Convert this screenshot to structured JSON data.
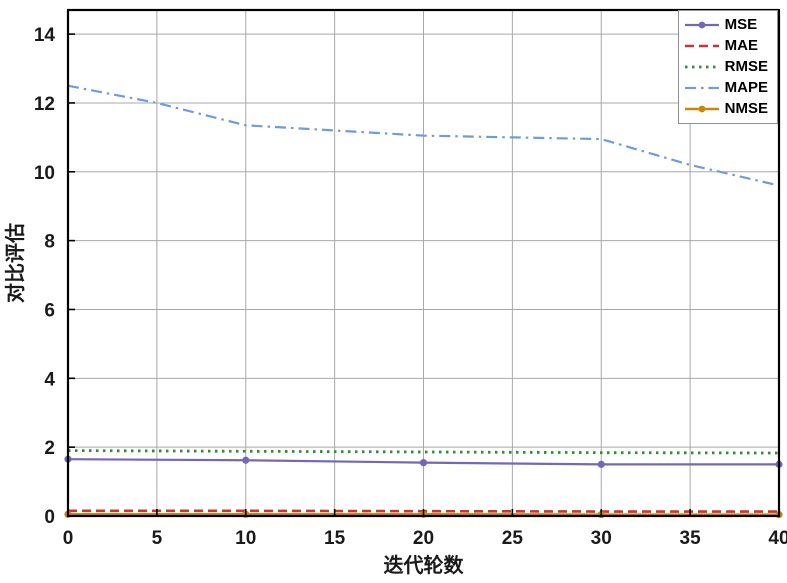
{
  "figure": {
    "background": "#ffffff"
  },
  "axes": {
    "xlabel": "迭代轮数",
    "ylabel": "对比评估",
    "xticks": [
      0,
      5,
      10,
      15,
      20,
      25,
      30,
      35,
      40
    ],
    "yticks": [
      0,
      2,
      4,
      6,
      8,
      10,
      12,
      14
    ],
    "xlim": [
      0,
      40
    ],
    "ylim": [
      0,
      14.7
    ],
    "grid": true,
    "grid_color": "#a8a8a8",
    "border_color": "#000000",
    "tick_label_color": "#1a1a1a"
  },
  "legend": {
    "position": "top-right",
    "border_color": "#8f8f8f",
    "entries": [
      "MSE",
      "MAE",
      "RMSE",
      "MAPE",
      "NMSE"
    ]
  },
  "chart_data": {
    "type": "line",
    "title": "",
    "xlabel": "迭代轮数",
    "ylabel": "对比评估",
    "xlim": [
      0,
      40
    ],
    "ylim": [
      0,
      14.7
    ],
    "grid": "on",
    "legend_position": "top-right",
    "series": [
      {
        "name": "MSE",
        "color": "#7468b6",
        "style": "solid",
        "marker": "circle",
        "width": 2.2,
        "x": [
          0,
          10,
          20,
          30,
          40
        ],
        "y": [
          1.65,
          1.62,
          1.55,
          1.5,
          1.5
        ]
      },
      {
        "name": "MAE",
        "color": "#cc3333",
        "style": "dashed",
        "marker": "none",
        "width": 2.6,
        "x": [
          0,
          10,
          20,
          30,
          40
        ],
        "y": [
          0.15,
          0.15,
          0.14,
          0.13,
          0.13
        ]
      },
      {
        "name": "RMSE",
        "color": "#2f8f2f",
        "style": "dotted",
        "marker": "none",
        "width": 2.8,
        "x": [
          0,
          10,
          20,
          30,
          40
        ],
        "y": [
          1.9,
          1.88,
          1.86,
          1.84,
          1.83
        ]
      },
      {
        "name": "MAPE",
        "color": "#6f9be0",
        "style": "dashdot",
        "marker": "none",
        "width": 2.2,
        "x": [
          0,
          5,
          10,
          15,
          20,
          25,
          30,
          35,
          40
        ],
        "y": [
          12.5,
          12.0,
          11.35,
          11.2,
          11.05,
          11.0,
          10.95,
          10.2,
          9.6
        ]
      },
      {
        "name": "NMSE",
        "color": "#c8860b",
        "style": "solid",
        "marker": "circle",
        "width": 2.6,
        "x": [
          0,
          10,
          20,
          30,
          40
        ],
        "y": [
          0.05,
          0.05,
          0.05,
          0.04,
          0.04
        ]
      }
    ]
  }
}
